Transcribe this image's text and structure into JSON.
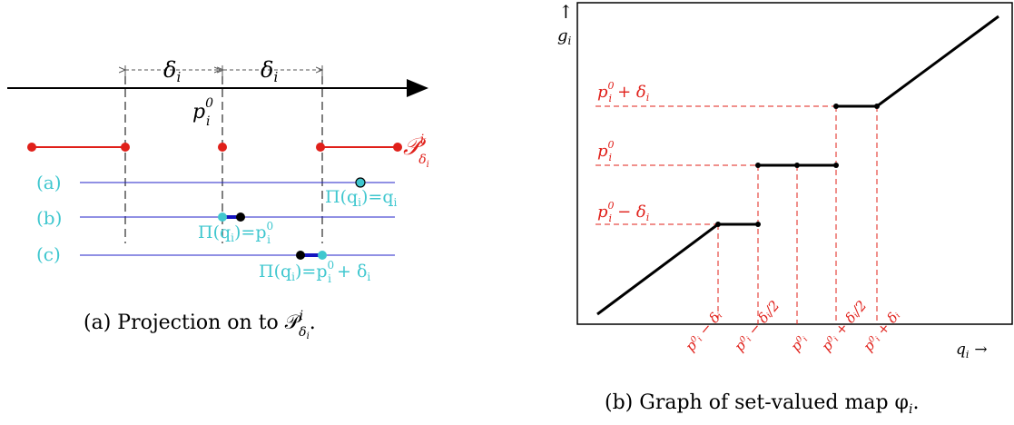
{
  "left_figure": {
    "delta_left": "δ",
    "delta_right": "δ",
    "delta_sub": "i",
    "p_label": "p",
    "p_sup": "0",
    "p_sub": "i",
    "set_label": "𝒫",
    "set_sup": "i",
    "set_sub": "δ",
    "set_subsub": "i",
    "case_a": "(a)",
    "case_b": "(b)",
    "case_c": "(c)",
    "proj_a": "Π(q",
    "proj_a_tail": ")=q",
    "proj_b": "Π(q",
    "proj_b_tail": ")=p",
    "proj_c": "Π(q",
    "proj_c_tail": ")=p",
    "proj_c_plus": "+ δ",
    "caption": "(a) Projection on to 𝒫"
  },
  "right_figure": {
    "y_arrow": "↑",
    "y_label": "g",
    "x_label": "q",
    "x_arrow": "→",
    "level_hi": "p",
    "level_hi_tail": "+ δ",
    "level_mid": "p",
    "level_lo": "p",
    "level_lo_tail": "− δ",
    "tick_1": "p⁰ᵢ − δᵢ",
    "tick_2": "p⁰ᵢ − δᵢ/2",
    "tick_3": "p⁰ᵢ",
    "tick_4": "p⁰ᵢ + δᵢ/2",
    "tick_5": "p⁰ᵢ + δᵢ",
    "caption": "(b) Graph of set-valued map φ"
  },
  "colors": {
    "red": "#e0201a",
    "cyan": "#3fc7cf",
    "blue": "#2222c8",
    "black": "#000000"
  }
}
